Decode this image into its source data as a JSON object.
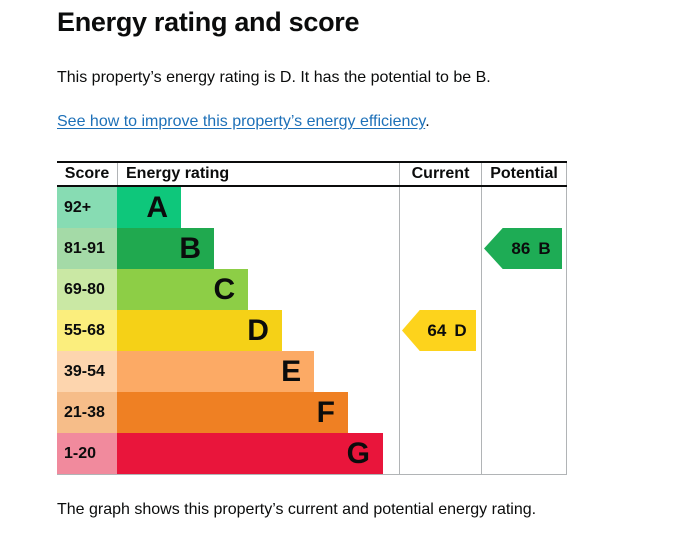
{
  "page": {
    "title": "Energy rating and score",
    "intro": "This property’s energy rating is D. It has the potential to be B.",
    "link_text": "See how to improve this property’s energy efficiency",
    "link_suffix": ".",
    "footer": "The graph shows this property’s current and potential energy rating."
  },
  "colors": {
    "text": "#0b0c0c",
    "link": "#1d70b8",
    "table_border_dark": "#0b0c0c",
    "table_border_light": "#b1b4b6"
  },
  "chart_data": {
    "type": "bar",
    "title": "Energy rating and score",
    "headers": [
      "Score",
      "Energy rating",
      "Current",
      "Potential"
    ],
    "legend_position": "none",
    "grid": false,
    "bands": [
      {
        "letter": "A",
        "score": "92+",
        "bar_color": "#0ec77b",
        "score_cell_color": "#87dcb3",
        "width_pct": 22.7
      },
      {
        "letter": "B",
        "score": "81-91",
        "bar_color": "#20a94f",
        "score_cell_color": "#a4daa7",
        "width_pct": 34.4
      },
      {
        "letter": "C",
        "score": "69-80",
        "bar_color": "#8dce46",
        "score_cell_color": "#cae8a4",
        "width_pct": 46.5
      },
      {
        "letter": "D",
        "score": "55-68",
        "bar_color": "#f5d117",
        "score_cell_color": "#fbee7d",
        "width_pct": 58.5
      },
      {
        "letter": "E",
        "score": "39-54",
        "bar_color": "#fcaa65",
        "score_cell_color": "#fdd5ae",
        "width_pct": 69.9
      },
      {
        "letter": "F",
        "score": "21-38",
        "bar_color": "#ef8023",
        "score_cell_color": "#f6bd89",
        "width_pct": 81.9
      },
      {
        "letter": "G",
        "score": "1-20",
        "bar_color": "#e9153b",
        "score_cell_color": "#f18a9d",
        "width_pct": 94.3
      }
    ],
    "current": {
      "label": "Current",
      "value": "64",
      "letter": "D",
      "band_index": 3,
      "color": "#fdd31c"
    },
    "potential": {
      "label": "Potential",
      "value": "86",
      "letter": "B",
      "band_index": 1,
      "color": "#1eac55"
    }
  }
}
